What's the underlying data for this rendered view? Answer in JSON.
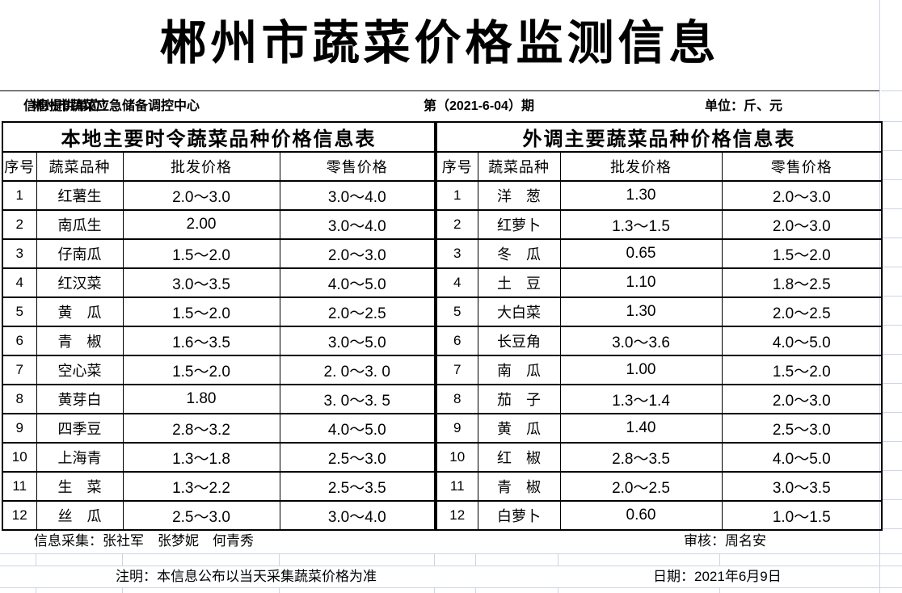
{
  "title": "郴州市蔬菜价格监测信息",
  "info_bar": {
    "provider_label": "信息提供单位：",
    "provider_value": "郴州市蔬菜应急储备调控中心",
    "issue": "第（2021-6-04）期",
    "unit": "单位：斤、元"
  },
  "tables": {
    "columns": [
      "序号",
      "蔬菜品种",
      "批发价格",
      "零售价格"
    ],
    "local": {
      "caption": "本地主要时令蔬菜品种价格信息表",
      "rows": [
        [
          "1",
          "红薯生",
          "2.0～3.0",
          "3.0～4.0"
        ],
        [
          "2",
          "南瓜生",
          "2.00",
          "3.0～4.0"
        ],
        [
          "3",
          "仔南瓜",
          "1.5～2.0",
          "2.0～3.0"
        ],
        [
          "4",
          "红汉菜",
          "3.0～3.5",
          "4.0～5.0"
        ],
        [
          "5",
          "黄　瓜",
          "1.5～2.0",
          "2.0～2.5"
        ],
        [
          "6",
          "青　椒",
          "1.6～3.5",
          "3.0～5.0"
        ],
        [
          "7",
          "空心菜",
          "1.5～2.0",
          "2. 0～3. 0"
        ],
        [
          "8",
          "黄芽白",
          "1.80",
          "3. 0～3. 5"
        ],
        [
          "9",
          "四季豆",
          "2.8～3.2",
          "4.0～5.0"
        ],
        [
          "10",
          "上海青",
          "1.3～1.8",
          "2.5～3.0"
        ],
        [
          "11",
          "生　菜",
          "1.3～2.2",
          "2.5～3.5"
        ],
        [
          "12",
          "丝　瓜",
          "2.5～3.0",
          "3.0～4.0"
        ]
      ]
    },
    "external": {
      "caption": "外调主要蔬菜品种价格信息表",
      "rows": [
        [
          "1",
          "洋　葱",
          "1.30",
          "2.0～3.0"
        ],
        [
          "2",
          "红萝卜",
          "1.3～1.5",
          "2.0～3.0"
        ],
        [
          "3",
          "冬　瓜",
          "0.65",
          "1.5～2.0"
        ],
        [
          "4",
          "土　豆",
          "1.10",
          "1.8～2.5"
        ],
        [
          "5",
          "大白菜",
          "1.30",
          "2.0～2.5"
        ],
        [
          "6",
          "长豆角",
          "3.0～3.6",
          "4.0～5.0"
        ],
        [
          "7",
          "南　瓜",
          "1.00",
          "1.5～2.0"
        ],
        [
          "8",
          "茄　子",
          "1.3～1.4",
          "2.0～3.0"
        ],
        [
          "9",
          "黄　瓜",
          "1.40",
          "2.5～3.0"
        ],
        [
          "10",
          "红　椒",
          "2.8～3.5",
          "4.0～5.0"
        ],
        [
          "11",
          "青　椒",
          "2.0～2.5",
          "3.0～3.5"
        ],
        [
          "12",
          "白萝卜",
          "0.60",
          "1.0～1.5"
        ]
      ]
    }
  },
  "footer": {
    "collectors": "信息采集：张社军　张梦妮　何青秀",
    "reviewer": "审核：周名安",
    "note": "注明：本信息公布以当天采集蔬菜价格为准",
    "date": "日期：2021年6月9日"
  },
  "colors": {
    "border": "#000000",
    "gridline": "#ccd5e2",
    "background": "#ffffff",
    "text": "#000000"
  }
}
